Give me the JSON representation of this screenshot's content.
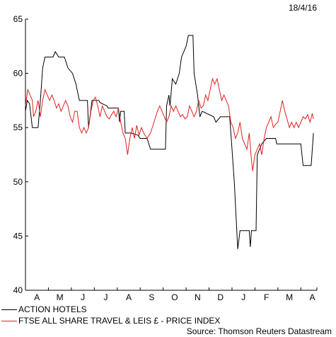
{
  "date_label": "18/4/16",
  "source": "Source: Thomson Reuters Datastream",
  "chart_data": {
    "type": "line",
    "title": "",
    "xlabel": "",
    "ylabel": "",
    "ylim": [
      40,
      65
    ],
    "yticks": [
      40,
      45,
      50,
      55,
      60,
      65
    ],
    "xlim": [
      0,
      12.7
    ],
    "month_labels": [
      "A",
      "M",
      "J",
      "J",
      "A",
      "S",
      "O",
      "N",
      "D",
      "J",
      "F",
      "M",
      "A"
    ],
    "grid": false,
    "legend_position": "bottom-left",
    "series": [
      {
        "name": "ACTION HOTELS",
        "color": "#000000",
        "points": [
          [
            0.0,
            56.5
          ],
          [
            0.08,
            57.5
          ],
          [
            0.18,
            57.2
          ],
          [
            0.3,
            55.0
          ],
          [
            0.55,
            55.0
          ],
          [
            0.65,
            57.5
          ],
          [
            0.75,
            60.5
          ],
          [
            0.85,
            61.5
          ],
          [
            1.2,
            61.5
          ],
          [
            1.3,
            62.0
          ],
          [
            1.45,
            61.5
          ],
          [
            1.7,
            61.5
          ],
          [
            1.85,
            60.5
          ],
          [
            2.05,
            60.0
          ],
          [
            2.2,
            59.0
          ],
          [
            2.35,
            57.5
          ],
          [
            2.7,
            57.5
          ],
          [
            2.75,
            55.0
          ],
          [
            2.9,
            57.5
          ],
          [
            3.2,
            57.5
          ],
          [
            3.25,
            57.3
          ],
          [
            3.55,
            57.0
          ],
          [
            3.6,
            56.8
          ],
          [
            4.05,
            56.8
          ],
          [
            4.1,
            55.5
          ],
          [
            4.15,
            56.5
          ],
          [
            4.3,
            56.5
          ],
          [
            4.35,
            54.5
          ],
          [
            4.6,
            54.5
          ],
          [
            4.9,
            54.3
          ],
          [
            5.0,
            54.0
          ],
          [
            5.3,
            54.0
          ],
          [
            5.45,
            53.0
          ],
          [
            6.1,
            53.0
          ],
          [
            6.15,
            57.0
          ],
          [
            6.25,
            58.0
          ],
          [
            6.3,
            57.0
          ],
          [
            6.4,
            59.5
          ],
          [
            6.55,
            59.0
          ],
          [
            6.7,
            60.0
          ],
          [
            6.8,
            61.5
          ],
          [
            7.0,
            62.5
          ],
          [
            7.1,
            63.5
          ],
          [
            7.3,
            63.5
          ],
          [
            7.35,
            60.0
          ],
          [
            7.5,
            58.0
          ],
          [
            7.6,
            56.0
          ],
          [
            7.7,
            56.5
          ],
          [
            8.2,
            56.0
          ],
          [
            8.3,
            55.5
          ],
          [
            8.5,
            56.0
          ],
          [
            8.9,
            56.0
          ],
          [
            9.0,
            53.0
          ],
          [
            9.1,
            50.0
          ],
          [
            9.25,
            43.8
          ],
          [
            9.35,
            45.5
          ],
          [
            9.75,
            45.5
          ],
          [
            9.8,
            44.0
          ],
          [
            9.85,
            45.5
          ],
          [
            10.05,
            45.5
          ],
          [
            10.1,
            52.5
          ],
          [
            10.3,
            53.5
          ],
          [
            10.5,
            54.0
          ],
          [
            10.9,
            54.0
          ],
          [
            10.95,
            53.5
          ],
          [
            12.0,
            53.5
          ],
          [
            12.1,
            51.5
          ],
          [
            12.45,
            51.5
          ],
          [
            12.55,
            54.5
          ]
        ]
      },
      {
        "name": "FTSE ALL SHARE TRAVEL & LEIS £ - PRICE INDEX",
        "color": "#e02020",
        "points": [
          [
            0.0,
            57.0
          ],
          [
            0.1,
            58.5
          ],
          [
            0.2,
            58.0
          ],
          [
            0.3,
            57.5
          ],
          [
            0.35,
            56.0
          ],
          [
            0.45,
            56.5
          ],
          [
            0.55,
            57.5
          ],
          [
            0.65,
            56.0
          ],
          [
            0.75,
            57.5
          ],
          [
            0.85,
            58.5
          ],
          [
            0.95,
            58.0
          ],
          [
            1.05,
            57.5
          ],
          [
            1.15,
            58.0
          ],
          [
            1.25,
            57.5
          ],
          [
            1.35,
            56.8
          ],
          [
            1.45,
            57.2
          ],
          [
            1.55,
            56.5
          ],
          [
            1.65,
            57.0
          ],
          [
            1.75,
            57.5
          ],
          [
            1.85,
            57.0
          ],
          [
            1.95,
            56.0
          ],
          [
            2.05,
            55.5
          ],
          [
            2.15,
            56.5
          ],
          [
            2.25,
            56.5
          ],
          [
            2.35,
            55.0
          ],
          [
            2.45,
            54.5
          ],
          [
            2.55,
            55.0
          ],
          [
            2.65,
            54.5
          ],
          [
            2.75,
            55.0
          ],
          [
            2.85,
            56.5
          ],
          [
            2.95,
            57.5
          ],
          [
            3.05,
            57.8
          ],
          [
            3.15,
            57.0
          ],
          [
            3.25,
            56.0
          ],
          [
            3.35,
            57.0
          ],
          [
            3.45,
            56.5
          ],
          [
            3.55,
            56.0
          ],
          [
            3.65,
            55.8
          ],
          [
            3.75,
            56.2
          ],
          [
            3.85,
            56.5
          ],
          [
            3.95,
            56.0
          ],
          [
            4.05,
            56.8
          ],
          [
            4.15,
            55.5
          ],
          [
            4.25,
            54.5
          ],
          [
            4.35,
            54.0
          ],
          [
            4.45,
            52.5
          ],
          [
            4.55,
            54.0
          ],
          [
            4.65,
            55.0
          ],
          [
            4.75,
            54.0
          ],
          [
            4.85,
            55.2
          ],
          [
            4.95,
            54.3
          ],
          [
            5.05,
            55.0
          ],
          [
            5.15,
            54.5
          ],
          [
            5.3,
            54.0
          ],
          [
            5.45,
            54.5
          ],
          [
            5.6,
            55.5
          ],
          [
            5.75,
            56.5
          ],
          [
            5.85,
            57.0
          ],
          [
            5.95,
            56.5
          ],
          [
            6.05,
            56.0
          ],
          [
            6.15,
            55.5
          ],
          [
            6.25,
            56.0
          ],
          [
            6.35,
            57.0
          ],
          [
            6.45,
            56.5
          ],
          [
            6.55,
            57.0
          ],
          [
            6.65,
            56.5
          ],
          [
            6.75,
            56.0
          ],
          [
            6.85,
            56.2
          ],
          [
            6.95,
            55.8
          ],
          [
            7.05,
            56.0
          ],
          [
            7.15,
            57.0
          ],
          [
            7.25,
            56.5
          ],
          [
            7.35,
            56.0
          ],
          [
            7.45,
            56.5
          ],
          [
            7.55,
            57.5
          ],
          [
            7.65,
            56.8
          ],
          [
            7.75,
            57.0
          ],
          [
            7.85,
            58.0
          ],
          [
            7.95,
            57.5
          ],
          [
            8.05,
            58.5
          ],
          [
            8.15,
            59.5
          ],
          [
            8.25,
            59.0
          ],
          [
            8.35,
            59.5
          ],
          [
            8.45,
            58.5
          ],
          [
            8.55,
            57.5
          ],
          [
            8.65,
            58.0
          ],
          [
            8.75,
            57.5
          ],
          [
            8.85,
            57.0
          ],
          [
            8.95,
            55.5
          ],
          [
            9.05,
            55.0
          ],
          [
            9.15,
            54.0
          ],
          [
            9.25,
            54.5
          ],
          [
            9.35,
            55.5
          ],
          [
            9.45,
            54.0
          ],
          [
            9.55,
            53.5
          ],
          [
            9.65,
            53.0
          ],
          [
            9.75,
            54.5
          ],
          [
            9.85,
            52.0
          ],
          [
            9.9,
            51.0
          ],
          [
            10.0,
            52.5
          ],
          [
            10.1,
            53.0
          ],
          [
            10.2,
            53.5
          ],
          [
            10.3,
            52.5
          ],
          [
            10.4,
            54.0
          ],
          [
            10.5,
            55.0
          ],
          [
            10.6,
            55.5
          ],
          [
            10.7,
            56.0
          ],
          [
            10.8,
            55.0
          ],
          [
            10.9,
            55.3
          ],
          [
            11.0,
            55.5
          ],
          [
            11.1,
            56.5
          ],
          [
            11.2,
            57.5
          ],
          [
            11.3,
            56.5
          ],
          [
            11.4,
            55.8
          ],
          [
            11.5,
            55.0
          ],
          [
            11.6,
            55.5
          ],
          [
            11.7,
            55.0
          ],
          [
            11.8,
            55.5
          ],
          [
            11.9,
            55.0
          ],
          [
            12.0,
            55.5
          ],
          [
            12.1,
            56.0
          ],
          [
            12.2,
            55.8
          ],
          [
            12.3,
            56.2
          ],
          [
            12.4,
            55.5
          ],
          [
            12.5,
            56.3
          ],
          [
            12.55,
            55.8
          ]
        ]
      }
    ]
  }
}
